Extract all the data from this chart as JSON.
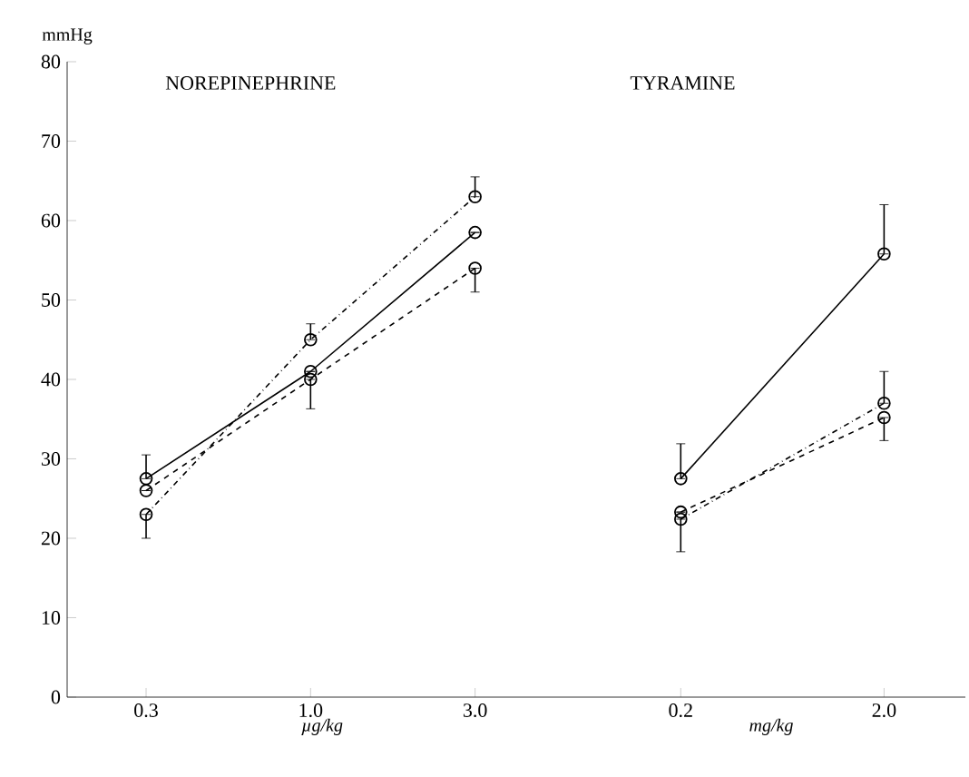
{
  "chart_data": [
    {
      "type": "line",
      "title": "NOREPINEPHRINE",
      "xlabel": "µg/kg",
      "ylabel": "mmHg",
      "categories": [
        "0.3",
        "1.0",
        "3.0"
      ],
      "ylim": [
        0,
        80
      ],
      "yticks": [
        0,
        10,
        20,
        30,
        40,
        50,
        60,
        70,
        80
      ],
      "marker": "circle",
      "series": [
        {
          "color": "#000000",
          "line_style": "solid",
          "values": [
            27.5,
            41,
            58.5
          ],
          "errors": [
            [
              27.5,
              30.5
            ],
            null,
            null
          ]
        },
        {
          "color": "#000000",
          "line_style": "dashed",
          "values": [
            26,
            40,
            54
          ],
          "errors": [
            null,
            [
              36.3,
              40
            ],
            [
              51,
              54
            ]
          ]
        },
        {
          "color": "#000000",
          "line_style": "dashdot",
          "values": [
            23,
            45,
            63
          ],
          "errors": [
            [
              20,
              23
            ],
            [
              45,
              47
            ],
            [
              63,
              65.5
            ]
          ]
        }
      ]
    },
    {
      "type": "line",
      "title": "TYRAMINE",
      "xlabel": "mg/kg",
      "categories": [
        "0.2",
        "2.0"
      ],
      "ylim": [
        0,
        80
      ],
      "yticks": [
        0,
        10,
        20,
        30,
        40,
        50,
        60,
        70,
        80
      ],
      "tick_labels": "x",
      "marker": "circle",
      "series": [
        {
          "color": "#000000",
          "line_style": "solid",
          "values": [
            27.5,
            55.8
          ],
          "errors": [
            [
              27.5,
              31.9
            ],
            [
              55.8,
              62
            ]
          ]
        },
        {
          "color": "#000000",
          "line_style": "dashed",
          "values": [
            23.3,
            35.2
          ],
          "errors": [
            null,
            [
              32.3,
              35.2
            ]
          ]
        },
        {
          "color": "#000000",
          "line_style": "dashdot",
          "values": [
            22.4,
            37
          ],
          "errors": [
            [
              18.3,
              22.4
            ],
            [
              37,
              41
            ]
          ]
        }
      ]
    }
  ]
}
